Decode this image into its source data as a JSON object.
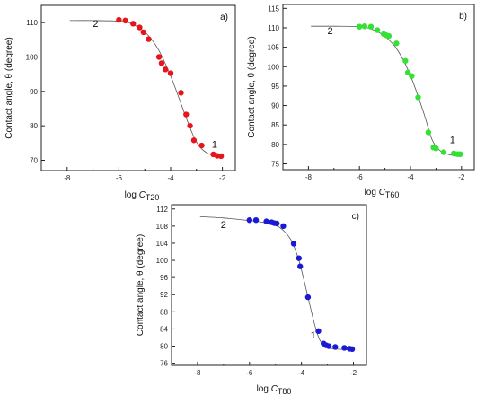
{
  "chart_data": [
    {
      "type": "scatter",
      "panel_label": "a)",
      "xlabel_prefix": "log ",
      "xlabel_var": "C",
      "xlabel_sub": "T20",
      "ylabel": "Contact angle, θ (degree)",
      "xlim": [
        -9,
        -1.5
      ],
      "ylim": [
        67,
        115
      ],
      "xticks": [
        -8,
        -6,
        -4,
        -2
      ],
      "yticks": [
        70,
        80,
        90,
        100,
        110
      ],
      "marker_color": "#e8141c",
      "annotations": [
        {
          "text": "2",
          "x": -6.9,
          "y": 108.7
        },
        {
          "text": "1",
          "x": -2.3,
          "y": 73.6
        }
      ],
      "points": {
        "x": [
          -6.0,
          -5.75,
          -5.45,
          -5.2,
          -5.05,
          -4.85,
          -4.45,
          -4.35,
          -4.2,
          -4.0,
          -3.6,
          -3.4,
          -3.25,
          -3.1,
          -2.8,
          -2.35,
          -2.2,
          -2.05
        ],
        "y": [
          110.8,
          110.6,
          109.7,
          108.6,
          107.2,
          105.2,
          100.0,
          98.2,
          96.4,
          95.3,
          89.6,
          83.3,
          80.0,
          75.8,
          74.3,
          71.7,
          71.3,
          71.2
        ]
      },
      "fit": {
        "x": [
          -7.9,
          -7,
          -6,
          -5.5,
          -5,
          -4.5,
          -4,
          -3.5,
          -3.2,
          -3,
          -2.8,
          -2.5,
          -2
        ],
        "y": [
          110.6,
          110.6,
          110.4,
          109.6,
          107.3,
          102.5,
          94.5,
          84.4,
          78.5,
          75.3,
          73.3,
          71.8,
          71.2
        ]
      }
    },
    {
      "type": "scatter",
      "panel_label": "b)",
      "xlabel_prefix": "log ",
      "xlabel_var": "C",
      "xlabel_sub": "T60",
      "ylabel": "Contact angle, θ (degree)",
      "xlim": [
        -9,
        -1.5
      ],
      "ylim": [
        73.5,
        116
      ],
      "xticks": [
        -8,
        -6,
        -4,
        -2
      ],
      "yticks": [
        75,
        80,
        85,
        90,
        95,
        100,
        105,
        110,
        115
      ],
      "marker_color": "#33e233",
      "annotations": [
        {
          "text": "2",
          "x": -7.15,
          "y": 108.4
        },
        {
          "text": "1",
          "x": -2.35,
          "y": 80.3
        }
      ],
      "points": {
        "x": [
          -6.0,
          -5.8,
          -5.55,
          -5.3,
          -5.05,
          -4.95,
          -4.85,
          -4.55,
          -4.2,
          -4.1,
          -3.95,
          -3.7,
          -3.3,
          -3.1,
          -3.0,
          -2.7,
          -2.3,
          -2.15,
          -2.05
        ],
        "y": [
          110.3,
          110.4,
          110.3,
          109.4,
          108.4,
          108.1,
          107.9,
          106.0,
          101.5,
          98.5,
          97.6,
          92.1,
          83.1,
          79.2,
          79.0,
          78.0,
          77.7,
          77.5,
          77.5
        ]
      },
      "fit": {
        "x": [
          -7.9,
          -7,
          -6,
          -5.5,
          -5,
          -4.5,
          -4,
          -3.5,
          -3.2,
          -3,
          -2.8,
          -2.5,
          -2.2,
          -2
        ],
        "y": [
          110.4,
          110.4,
          110.3,
          109.6,
          107.8,
          104.2,
          97.7,
          88.5,
          82.0,
          79.5,
          78.2,
          77.4,
          77.0,
          76.9
        ]
      }
    },
    {
      "type": "scatter",
      "panel_label": "c)",
      "xlabel_prefix": "log ",
      "xlabel_var": "C",
      "xlabel_sub": "T80",
      "ylabel": "Contact angle, θ (degree)",
      "xlim": [
        -9,
        -1.5
      ],
      "ylim": [
        75.5,
        113
      ],
      "xticks": [
        -8,
        -6,
        -4,
        -2
      ],
      "yticks": [
        76,
        80,
        84,
        88,
        92,
        96,
        100,
        104,
        108,
        112
      ],
      "marker_color": "#1a1ad6",
      "annotations": [
        {
          "text": "2",
          "x": -7.0,
          "y": 107.6
        },
        {
          "text": "1",
          "x": -3.55,
          "y": 81.8
        }
      ],
      "points": {
        "x": [
          -6.0,
          -5.75,
          -5.35,
          -5.15,
          -5.05,
          -4.95,
          -4.7,
          -4.3,
          -4.1,
          -4.05,
          -3.75,
          -3.35,
          -3.15,
          -3.05,
          -2.95,
          -2.7,
          -2.35,
          -2.15,
          -2.05
        ],
        "y": [
          109.4,
          109.4,
          109.1,
          108.9,
          108.7,
          108.6,
          108.0,
          103.9,
          100.5,
          98.6,
          91.4,
          83.5,
          80.6,
          80.2,
          80.0,
          79.8,
          79.6,
          79.4,
          79.3
        ]
      },
      "fit": {
        "x": [
          -7.9,
          -7,
          -6,
          -5.5,
          -5,
          -4.7,
          -4.4,
          -4.1,
          -3.8,
          -3.5,
          -3.3,
          -3.1,
          -2.9,
          -2.6,
          -2.3,
          -2
        ],
        "y": [
          110.2,
          109.9,
          109.3,
          108.9,
          108.2,
          107.0,
          104.7,
          100.0,
          92.7,
          85.2,
          81.5,
          80.0,
          79.5,
          79.3,
          79.2,
          79.1
        ]
      }
    }
  ]
}
